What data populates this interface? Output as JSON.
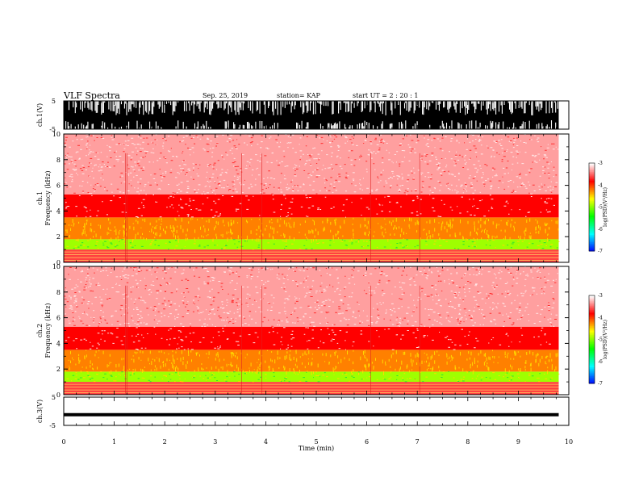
{
  "header": {
    "title": "VLF Spectra",
    "date": "Sep. 25, 2019",
    "station": "station= KAP",
    "start": "start  UT  =   2  : 20 : 1"
  },
  "chart_data": [
    {
      "type": "line",
      "panel": "ch1-waveform",
      "ylabel": "ch.1(V)",
      "ylim": [
        -5,
        5
      ],
      "yticks": [
        "5",
        "-5"
      ],
      "xlim": [
        0,
        10
      ],
      "data_end_min": 9.8,
      "description_values": {
        "amplitude_range_V": [
          -5,
          5
        ]
      }
    },
    {
      "type": "heatmap",
      "panel": "ch1-spectrogram",
      "ylabel": "ch.1\nFrequency  (kHz)",
      "ylim": [
        0,
        10
      ],
      "yticks": [
        "0",
        "2",
        "4",
        "6",
        "8",
        "10"
      ],
      "xlim": [
        0,
        10
      ],
      "data_end_min": 9.8,
      "colorbar": {
        "label": "log(PSD)(V²/Hz)",
        "range": [
          -7,
          -3
        ],
        "ticks": [
          "-3",
          "-4",
          "-5",
          "-6",
          "-7"
        ]
      },
      "bands_kHz": [
        {
          "from": 0,
          "to": 1.0,
          "level": -3.6
        },
        {
          "from": 1.0,
          "to": 1.8,
          "level": -4.9
        },
        {
          "from": 1.8,
          "to": 3.5,
          "level": -4.2
        },
        {
          "from": 3.5,
          "to": 5.3,
          "level": -3.8
        },
        {
          "from": 5.3,
          "to": 10,
          "level": -3.3
        }
      ]
    },
    {
      "type": "heatmap",
      "panel": "ch2-spectrogram",
      "ylabel": "ch.2\nFrequency  (kHz)",
      "ylim": [
        0,
        10
      ],
      "yticks": [
        "0",
        "2",
        "4",
        "6",
        "8",
        "10"
      ],
      "xlim": [
        0,
        10
      ],
      "data_end_min": 9.8,
      "colorbar": {
        "label": "log(PSD)(V²/Hz)",
        "range": [
          -7,
          -3
        ],
        "ticks": [
          "-3",
          "-4",
          "-5",
          "-6",
          "-7"
        ]
      },
      "bands_kHz": [
        {
          "from": 0,
          "to": 1.0,
          "level": -3.6
        },
        {
          "from": 1.0,
          "to": 1.8,
          "level": -4.9
        },
        {
          "from": 1.8,
          "to": 3.5,
          "level": -4.2
        },
        {
          "from": 3.5,
          "to": 5.3,
          "level": -3.8
        },
        {
          "from": 5.3,
          "to": 10,
          "level": -3.3
        }
      ]
    },
    {
      "type": "line",
      "panel": "ch3-waveform",
      "ylabel": "ch.3(V)",
      "ylim": [
        -5,
        5
      ],
      "yticks": [
        "5",
        "-5"
      ],
      "xlim": [
        0,
        10
      ],
      "data_end_min": 9.8,
      "x": [
        0,
        9.8
      ],
      "y": [
        -1.2,
        -1.2
      ]
    }
  ],
  "xaxis": {
    "label": "Time  (min)",
    "ticks": [
      "0",
      "1",
      "2",
      "3",
      "4",
      "5",
      "6",
      "7",
      "8",
      "9",
      "10"
    ]
  },
  "colors": {
    "colormap": [
      "#0000ff",
      "#00ffff",
      "#00ff00",
      "#ffff00",
      "#ff0000",
      "#ffffff"
    ]
  }
}
